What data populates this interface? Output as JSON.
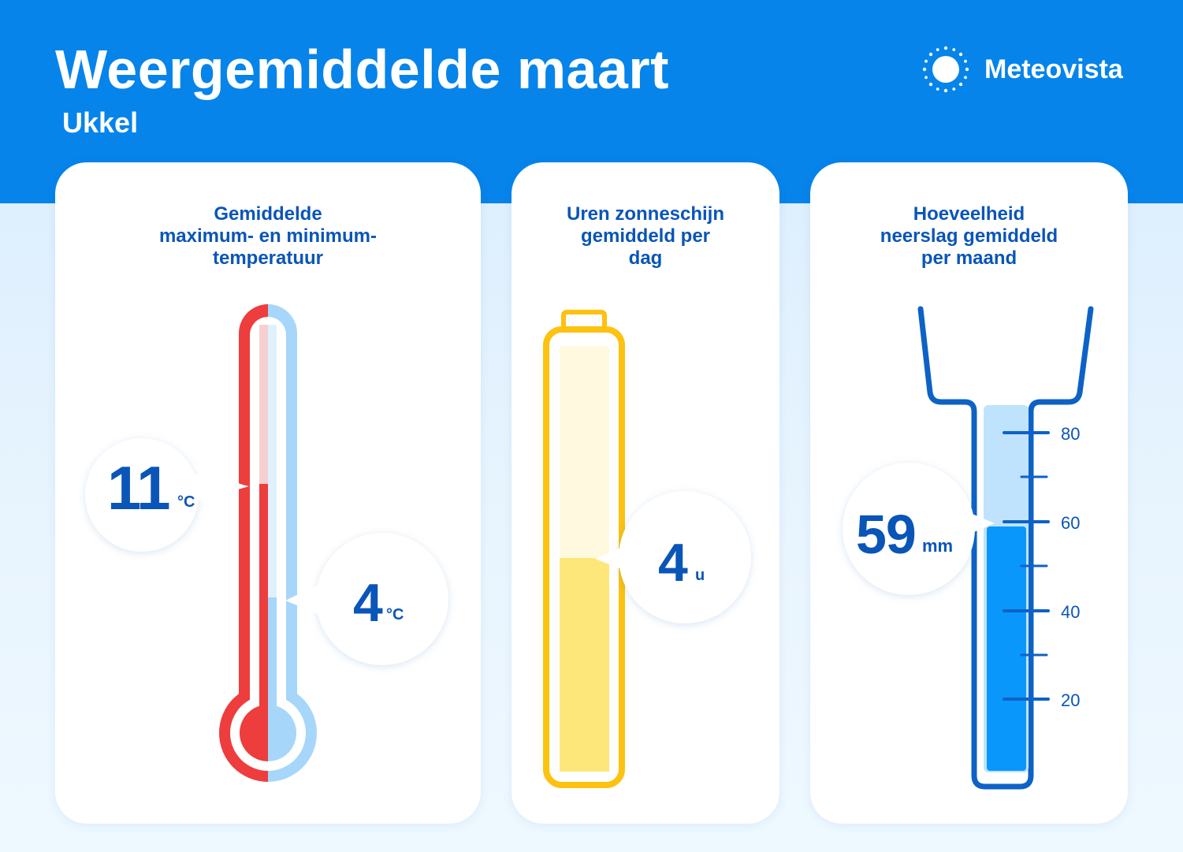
{
  "header": {
    "title": "Weergemiddelde maart",
    "subtitle": "Ukkel",
    "brand": "Meteovista",
    "brand_icon": "sun-icon"
  },
  "cards": {
    "temperature": {
      "title_lines": [
        "Gemiddelde",
        "maximum- en minimum-",
        "temperatuur"
      ],
      "max_value": "11",
      "max_unit": "°C",
      "min_value": "4",
      "min_unit": "°C"
    },
    "sunshine": {
      "title_lines": [
        "Uren zonneschijn",
        "gemiddeld per",
        "dag"
      ],
      "value": "4",
      "unit": "u"
    },
    "precipitation": {
      "title_lines": [
        "Hoeveelheid",
        "neerslag gemiddeld",
        "per maand"
      ],
      "value": "59",
      "unit": "mm",
      "scale_labels": [
        "80",
        "60",
        "40",
        "20"
      ]
    }
  },
  "colors": {
    "header_blue": "#0684ea",
    "text_blue": "#0a55b8",
    "red": "#ee3d3d",
    "light_red": "#f8cfd0",
    "light_blue": "#a6d6fa",
    "yellow": "#fcc20f",
    "light_yellow": "#fff9df",
    "mid_yellow": "#fee77a",
    "water_blue": "#0a97fb",
    "outline_blue": "#0d62c6"
  }
}
